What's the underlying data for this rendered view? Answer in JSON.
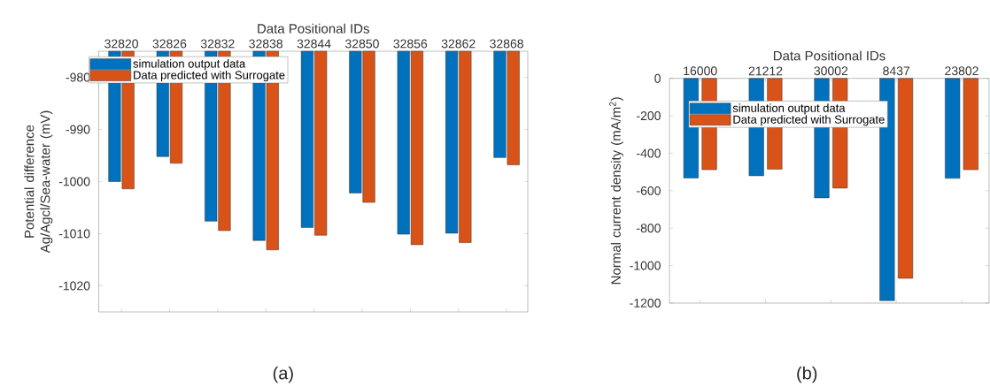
{
  "chart_data": [
    {
      "type": "bar",
      "xlabel": "Data Positional IDs",
      "ylabel": "Potential difference Ag/Agcl/Sea-water (mV)",
      "categories": [
        "32820",
        "32826",
        "32832",
        "32838",
        "32844",
        "32850",
        "32856",
        "32862",
        "32868"
      ],
      "series": [
        {
          "name": "simulation output data",
          "color": "#0072bd",
          "values": [
            -1000.0,
            -995.2,
            -1007.6,
            -1011.3,
            -1008.8,
            -1002.2,
            -1010.1,
            -1009.9,
            -995.4
          ]
        },
        {
          "name": "Data predicted with Surrogate",
          "color": "#d95319",
          "values": [
            -1001.4,
            -996.5,
            -1009.4,
            -1013.1,
            -1010.3,
            -1004.0,
            -1012.1,
            -1011.7,
            -996.8
          ]
        }
      ],
      "ylim": [
        -1025,
        -975
      ],
      "yticks": [
        -1020,
        -1010,
        -1000,
        -990,
        -980
      ],
      "legend": "top left",
      "annotations": [
        "(a)"
      ]
    },
    {
      "type": "bar",
      "xlabel": "Data Positional IDs",
      "ylabel": "Normal current density (mA/m$^{2}$)",
      "categories": [
        "16000",
        "21212",
        "30002",
        "8437",
        "23802"
      ],
      "series": [
        {
          "name": "simulation output data",
          "color": "#0072bd",
          "values": [
            -532,
            -520,
            -638,
            -1187,
            -534
          ]
        },
        {
          "name": "Data predicted with Surrogate",
          "color": "#d95319",
          "values": [
            -488,
            -485,
            -586,
            -1068,
            -488
          ]
        }
      ],
      "ylim": [
        -1200,
        0
      ],
      "yticks": [
        -1200,
        -1000,
        -800,
        -600,
        -400,
        -200,
        0
      ],
      "legend": "top left",
      "annotations": [
        "(b)"
      ]
    }
  ]
}
